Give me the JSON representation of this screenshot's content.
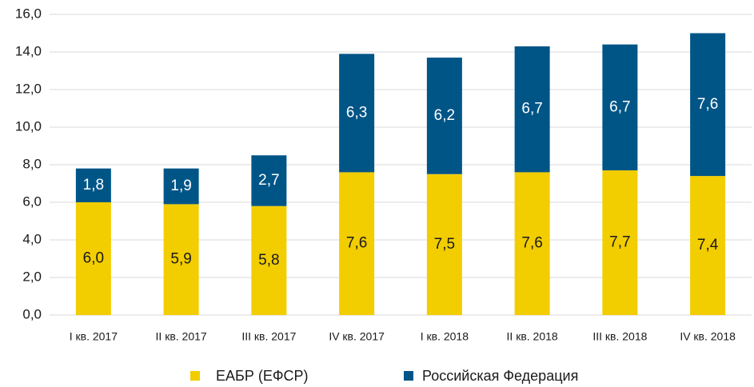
{
  "chart_data": {
    "type": "stacked_bar",
    "categories": [
      "I кв. 2017",
      "II кв. 2017",
      "III кв. 2017",
      "IV кв. 2017",
      "I кв. 2018",
      "II кв. 2018",
      "III кв. 2018",
      "IV кв. 2018"
    ],
    "series": [
      {
        "name": "ЕАБР (ЕФСР)",
        "color": "#f2cd00",
        "values": [
          6.0,
          5.9,
          5.8,
          7.6,
          7.5,
          7.6,
          7.7,
          7.4
        ],
        "value_labels": [
          "6,0",
          "5,9",
          "5,8",
          "7,6",
          "7,5",
          "7,6",
          "7,7",
          "7,4"
        ]
      },
      {
        "name": "Российская Федерация",
        "color": "#005587",
        "values": [
          1.8,
          1.9,
          2.7,
          6.3,
          6.2,
          6.7,
          6.7,
          7.6
        ],
        "value_labels": [
          "1,8",
          "1,9",
          "2,7",
          "6,3",
          "6,2",
          "6,7",
          "6,7",
          "7,6"
        ]
      }
    ],
    "ylim": [
      0,
      16
    ],
    "yticks": [
      {
        "value": 0,
        "label": "0,0"
      },
      {
        "value": 2,
        "label": "2,0"
      },
      {
        "value": 4,
        "label": "4,0"
      },
      {
        "value": 6,
        "label": "6,0"
      },
      {
        "value": 8,
        "label": "8,0"
      },
      {
        "value": 10,
        "label": "10,0"
      },
      {
        "value": 12,
        "label": "12,0"
      },
      {
        "value": 14,
        "label": "14,0"
      },
      {
        "value": 16,
        "label": "16,0"
      }
    ],
    "grid": true,
    "legend": "bottom"
  }
}
